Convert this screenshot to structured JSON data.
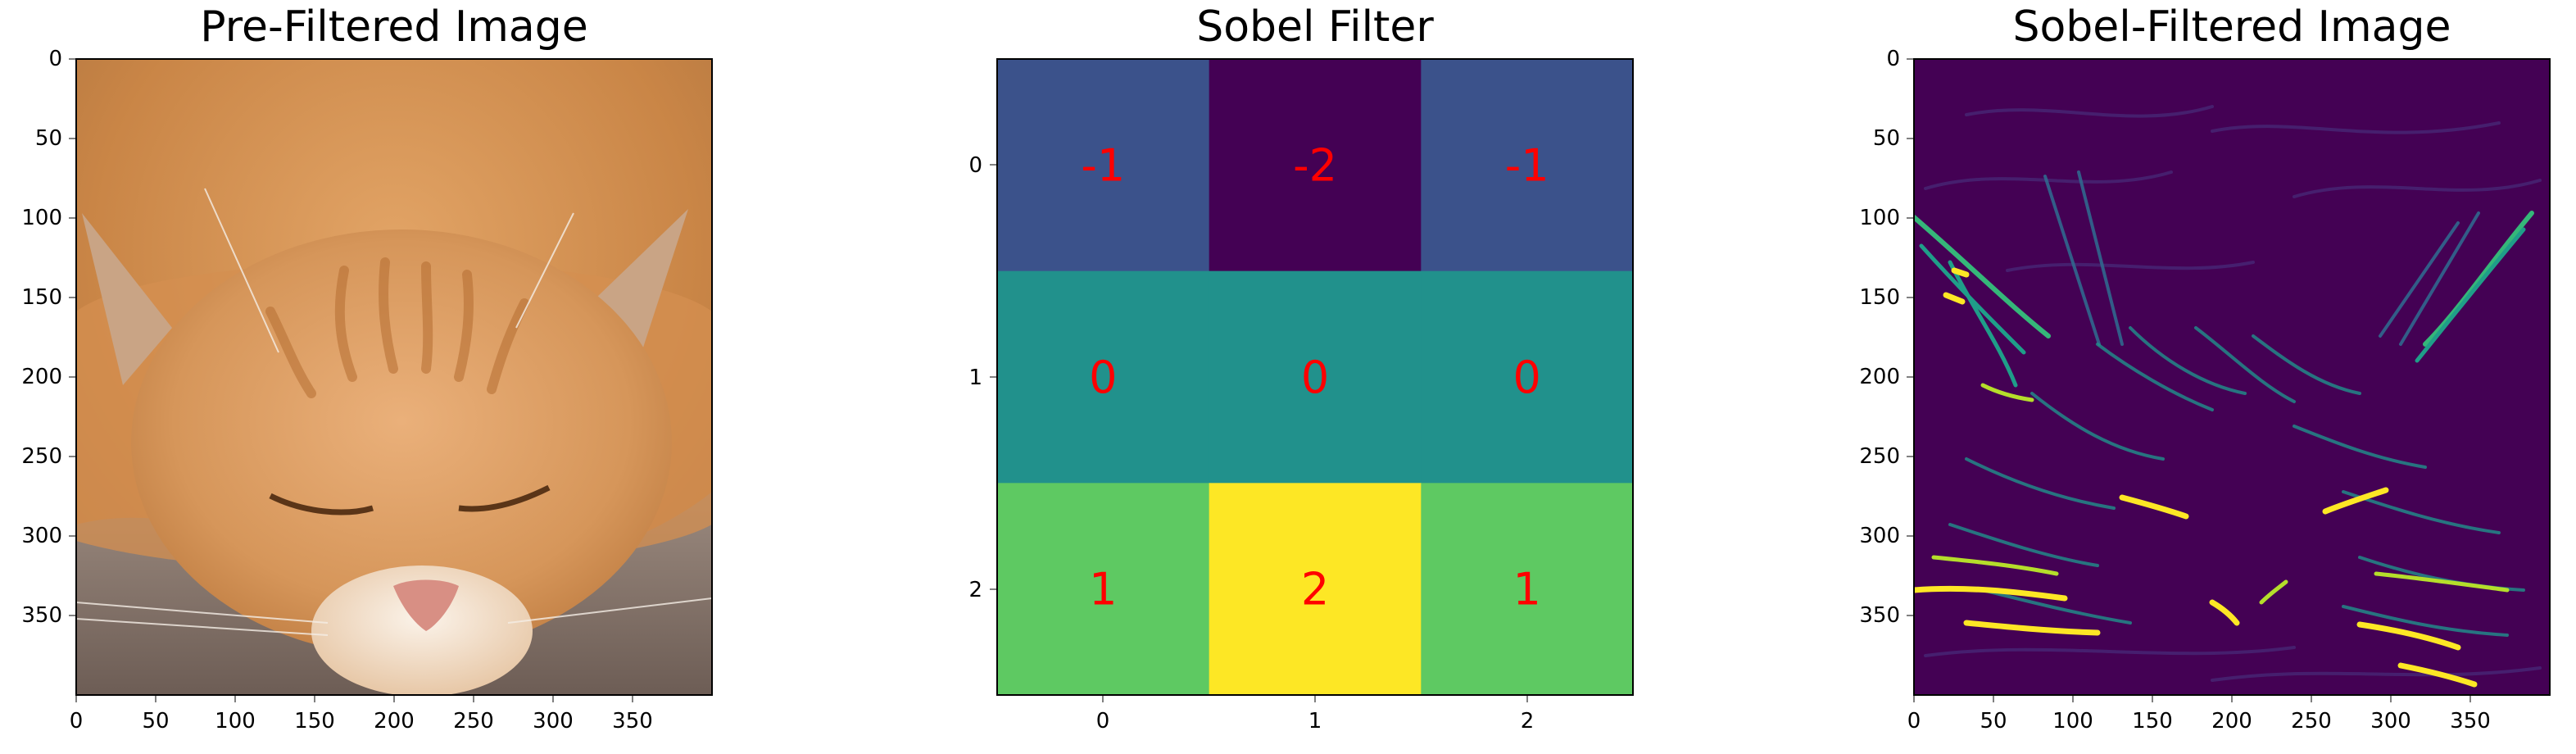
{
  "chart_data": [
    {
      "type": "image",
      "title": "Pre-Filtered Image",
      "xlim": [
        0,
        400
      ],
      "ylim": [
        400,
        0
      ],
      "xticks": [
        0,
        50,
        100,
        150,
        200,
        250,
        300,
        350
      ],
      "yticks": [
        0,
        50,
        100,
        150,
        200,
        250,
        300,
        350
      ],
      "content": "photo of a sleeping orange tabby cat"
    },
    {
      "type": "heatmap",
      "title": "Sobel Filter",
      "colormap": "viridis",
      "xticks": [
        0,
        1,
        2
      ],
      "yticks": [
        0,
        1,
        2
      ],
      "matrix": [
        [
          -1,
          -2,
          -1
        ],
        [
          0,
          0,
          0
        ],
        [
          1,
          2,
          1
        ]
      ],
      "annotation_color": "#ff0000",
      "colors": [
        "#3b528b",
        "#440154",
        "#21918c",
        "#5ec962",
        "#fde725"
      ]
    },
    {
      "type": "image",
      "title": "Sobel-Filtered Image",
      "colormap": "viridis",
      "xlim": [
        0,
        400
      ],
      "ylim": [
        400,
        0
      ],
      "xticks": [
        0,
        50,
        100,
        150,
        200,
        250,
        300,
        350
      ],
      "yticks": [
        0,
        50,
        100,
        150,
        200,
        250,
        300,
        350
      ],
      "content": "edge map of the cat image"
    }
  ]
}
